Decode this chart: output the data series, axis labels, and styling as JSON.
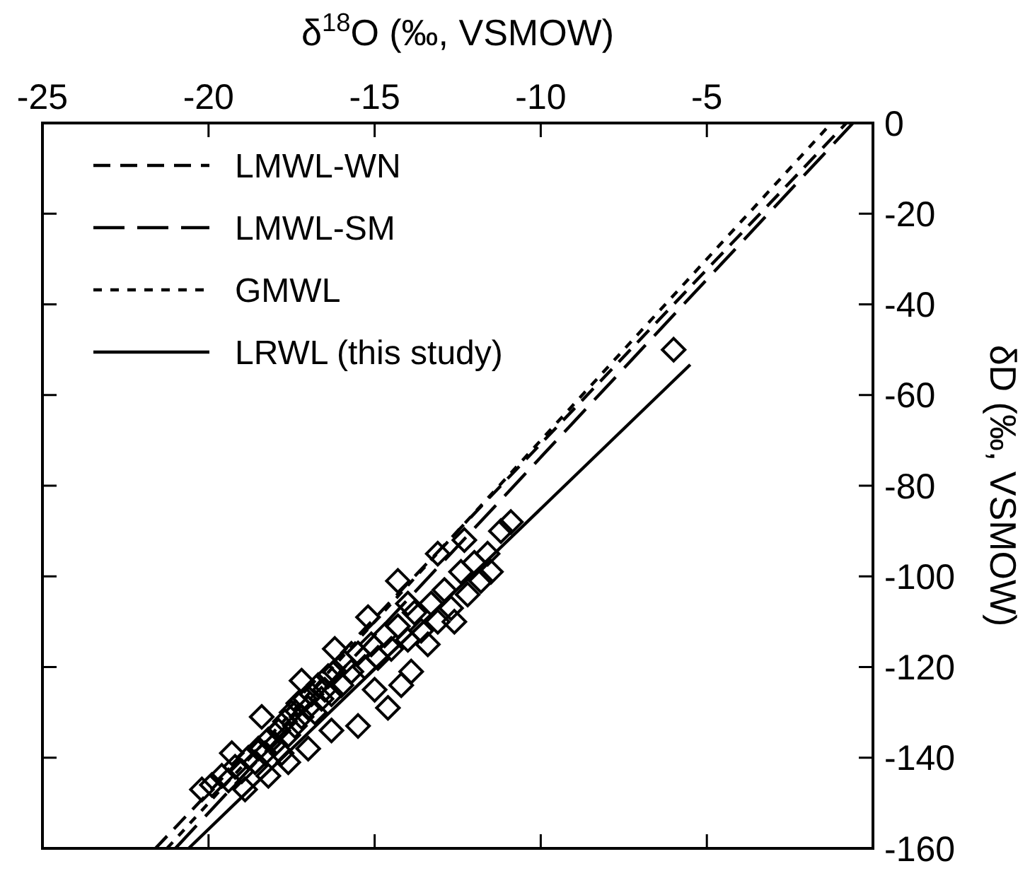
{
  "chart_data": {
    "type": "scatter",
    "xlabel": "δ$^{18}$O (‰, VSMOW)",
    "ylabel": "δD (‰, VSMOW)",
    "xlim": [
      -25,
      0
    ],
    "xticks": [
      -25,
      -20,
      -15,
      -10,
      -5
    ],
    "ylim": [
      -160,
      0
    ],
    "yticks": [
      0,
      -20,
      -40,
      -60,
      -80,
      -100,
      -120,
      -140,
      -160
    ],
    "legend": "top left",
    "grid": false,
    "series": [
      {
        "name": "LMWL-WN",
        "type": "line",
        "color": "#000000",
        "line_style": "dashed",
        "x": [
          -21.6,
          -0.8
        ],
        "values": [
          -160,
          0
        ]
      },
      {
        "name": "LMWL-SM",
        "type": "line",
        "color": "#000000",
        "line_style": "dashed",
        "x": [
          -21.0,
          -0.6
        ],
        "values": [
          -160,
          0
        ]
      },
      {
        "name": "GMWL",
        "type": "line",
        "color": "#000000",
        "line_style": "dotted",
        "x": [
          -21.25,
          -1.25
        ],
        "values": [
          -160,
          0
        ]
      },
      {
        "name": "LRWL (this study)",
        "type": "line",
        "color": "#000000",
        "line_style": "solid",
        "x": [
          -20.6,
          -5.5
        ],
        "values": [
          -160,
          -53.3
        ]
      },
      {
        "color": "#000000",
        "marker": "diamond",
        "x": [
          -20.2,
          -19.9,
          -19.6,
          -19.4,
          -19.2,
          -19.0,
          -18.8,
          -18.6,
          -18.5,
          -18.3,
          -18.2,
          -18.0,
          -17.9,
          -17.8,
          -17.7,
          -17.6,
          -17.5,
          -17.4,
          -17.3,
          -17.2,
          -17.1,
          -17.0,
          -16.9,
          -16.8,
          -16.7,
          -16.6,
          -16.5,
          -16.4,
          -16.3,
          -16.2,
          -16.0,
          -15.9,
          -15.7,
          -15.5,
          -15.3,
          -15.1,
          -14.9,
          -14.7,
          -14.5,
          -14.3,
          -14.0,
          -13.8,
          -13.6,
          -13.3,
          -13.1,
          -12.9,
          -12.7,
          -12.4,
          -12.2,
          -12.0,
          -11.8,
          -11.6,
          -11.5,
          -11.2,
          -10.9,
          -18.9,
          -18.2,
          -17.6,
          -17.0,
          -16.3,
          -15.5,
          -14.6,
          -13.9,
          -14.2,
          -14.0,
          -15.0,
          -13.4,
          -12.6,
          -19.3,
          -18.4,
          -17.2,
          -16.2,
          -15.2,
          -14.3,
          -13.1,
          -12.3,
          -6.0
        ],
        "values": [
          -147,
          -146,
          -144,
          -145,
          -142,
          -143,
          -140,
          -141,
          -138,
          -139,
          -136,
          -137,
          -134,
          -139,
          -132,
          -135,
          -130,
          -133,
          -128,
          -131,
          -127,
          -129,
          -126,
          -130,
          -124,
          -127,
          -125,
          -122,
          -126,
          -121,
          -124,
          -119,
          -121,
          -117,
          -120,
          -115,
          -118,
          -113,
          -116,
          -111,
          -114,
          -108,
          -112,
          -106,
          -110,
          -103,
          -107,
          -99,
          -104,
          -97,
          -101,
          -95,
          -99,
          -90,
          -88,
          -147,
          -144,
          -141,
          -138,
          -134,
          -133,
          -129,
          -121,
          -124,
          -106,
          -125,
          -115,
          -110,
          -139,
          -131,
          -123,
          -116,
          -109,
          -101,
          -95,
          -92,
          -50
        ]
      }
    ]
  }
}
